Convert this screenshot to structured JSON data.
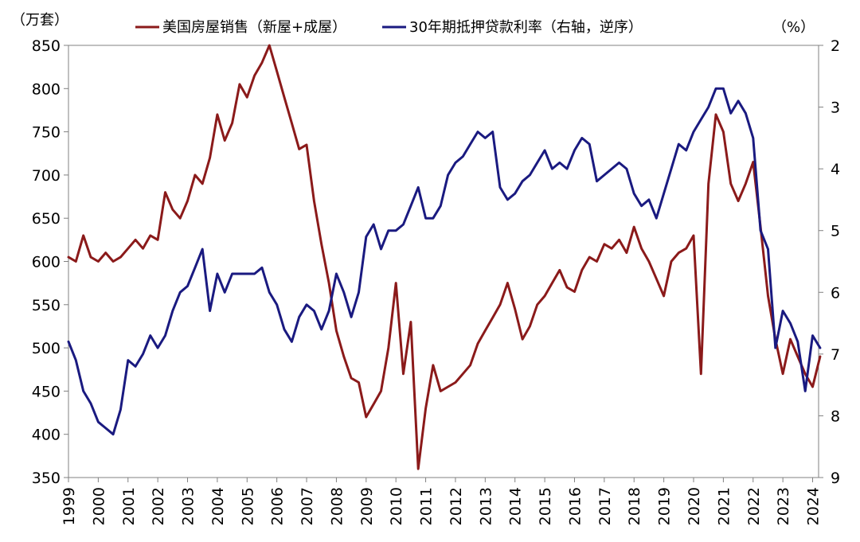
{
  "chart_data": {
    "type": "line",
    "title": "",
    "left_unit": "（万套）",
    "right_unit": "（%）",
    "legend": [
      {
        "name": "美国房屋销售（新屋+成屋）",
        "color": "#8B1A1A"
      },
      {
        "name": "30年期抵押贷款利率（右轴，逆序）",
        "color": "#1A1A80"
      }
    ],
    "x_ticks": [
      "1999",
      "2000",
      "2001",
      "2002",
      "2003",
      "2004",
      "2005",
      "2006",
      "2007",
      "2008",
      "2009",
      "2010",
      "2011",
      "2012",
      "2013",
      "2014",
      "2015",
      "2016",
      "2017",
      "2018",
      "2019",
      "2020",
      "2021",
      "2022",
      "2023",
      "2024"
    ],
    "y_left": {
      "min": 350,
      "max": 850,
      "ticks": [
        350,
        400,
        450,
        500,
        550,
        600,
        650,
        700,
        750,
        800,
        850
      ]
    },
    "y_right": {
      "min": 2,
      "max": 9,
      "inverted": true,
      "ticks": [
        2,
        3,
        4,
        5,
        6,
        7,
        8,
        9
      ]
    },
    "legend_position": "top",
    "grid": false,
    "series": [
      {
        "name": "美国房屋销售（新屋+成屋）",
        "axis": "left",
        "color": "#8B1A1A",
        "points": [
          [
            1999.0,
            605
          ],
          [
            1999.25,
            600
          ],
          [
            1999.5,
            630
          ],
          [
            1999.75,
            605
          ],
          [
            2000.0,
            600
          ],
          [
            2000.25,
            610
          ],
          [
            2000.5,
            600
          ],
          [
            2000.75,
            605
          ],
          [
            2001.0,
            615
          ],
          [
            2001.25,
            625
          ],
          [
            2001.5,
            615
          ],
          [
            2001.75,
            630
          ],
          [
            2002.0,
            625
          ],
          [
            2002.25,
            680
          ],
          [
            2002.5,
            660
          ],
          [
            2002.75,
            650
          ],
          [
            2003.0,
            670
          ],
          [
            2003.25,
            700
          ],
          [
            2003.5,
            690
          ],
          [
            2003.75,
            720
          ],
          [
            2004.0,
            770
          ],
          [
            2004.25,
            740
          ],
          [
            2004.5,
            760
          ],
          [
            2004.75,
            805
          ],
          [
            2005.0,
            790
          ],
          [
            2005.25,
            815
          ],
          [
            2005.5,
            830
          ],
          [
            2005.75,
            850
          ],
          [
            2006.0,
            820
          ],
          [
            2006.25,
            790
          ],
          [
            2006.5,
            760
          ],
          [
            2006.75,
            730
          ],
          [
            2007.0,
            735
          ],
          [
            2007.25,
            670
          ],
          [
            2007.5,
            620
          ],
          [
            2007.75,
            575
          ],
          [
            2008.0,
            520
          ],
          [
            2008.25,
            490
          ],
          [
            2008.5,
            465
          ],
          [
            2008.75,
            460
          ],
          [
            2009.0,
            420
          ],
          [
            2009.25,
            435
          ],
          [
            2009.5,
            450
          ],
          [
            2009.75,
            500
          ],
          [
            2010.0,
            575
          ],
          [
            2010.25,
            470
          ],
          [
            2010.5,
            530
          ],
          [
            2010.75,
            360
          ],
          [
            2011.0,
            430
          ],
          [
            2011.25,
            480
          ],
          [
            2011.5,
            450
          ],
          [
            2011.75,
            455
          ],
          [
            2012.0,
            460
          ],
          [
            2012.25,
            470
          ],
          [
            2012.5,
            480
          ],
          [
            2012.75,
            505
          ],
          [
            2013.0,
            520
          ],
          [
            2013.25,
            535
          ],
          [
            2013.5,
            550
          ],
          [
            2013.75,
            575
          ],
          [
            2014.0,
            545
          ],
          [
            2014.25,
            510
          ],
          [
            2014.5,
            525
          ],
          [
            2014.75,
            550
          ],
          [
            2015.0,
            560
          ],
          [
            2015.25,
            575
          ],
          [
            2015.5,
            590
          ],
          [
            2015.75,
            570
          ],
          [
            2016.0,
            565
          ],
          [
            2016.25,
            590
          ],
          [
            2016.5,
            605
          ],
          [
            2016.75,
            600
          ],
          [
            2017.0,
            620
          ],
          [
            2017.25,
            615
          ],
          [
            2017.5,
            625
          ],
          [
            2017.75,
            610
          ],
          [
            2018.0,
            640
          ],
          [
            2018.25,
            615
          ],
          [
            2018.5,
            600
          ],
          [
            2018.75,
            580
          ],
          [
            2019.0,
            560
          ],
          [
            2019.25,
            600
          ],
          [
            2019.5,
            610
          ],
          [
            2019.75,
            615
          ],
          [
            2020.0,
            630
          ],
          [
            2020.25,
            470
          ],
          [
            2020.5,
            690
          ],
          [
            2020.75,
            770
          ],
          [
            2021.0,
            750
          ],
          [
            2021.25,
            690
          ],
          [
            2021.5,
            670
          ],
          [
            2021.75,
            690
          ],
          [
            2022.0,
            715
          ],
          [
            2022.25,
            640
          ],
          [
            2022.5,
            560
          ],
          [
            2022.75,
            510
          ],
          [
            2023.0,
            470
          ],
          [
            2023.25,
            510
          ],
          [
            2023.5,
            490
          ],
          [
            2023.75,
            470
          ],
          [
            2024.0,
            455
          ],
          [
            2024.25,
            490
          ]
        ]
      },
      {
        "name": "30年期抵押贷款利率（右轴，逆序）",
        "axis": "right",
        "color": "#1A1A80",
        "points": [
          [
            1999.0,
            6.8
          ],
          [
            1999.25,
            7.1
          ],
          [
            1999.5,
            7.6
          ],
          [
            1999.75,
            7.8
          ],
          [
            2000.0,
            8.1
          ],
          [
            2000.25,
            8.2
          ],
          [
            2000.5,
            8.3
          ],
          [
            2000.75,
            7.9
          ],
          [
            2001.0,
            7.1
          ],
          [
            2001.25,
            7.2
          ],
          [
            2001.5,
            7.0
          ],
          [
            2001.75,
            6.7
          ],
          [
            2002.0,
            6.9
          ],
          [
            2002.25,
            6.7
          ],
          [
            2002.5,
            6.3
          ],
          [
            2002.75,
            6.0
          ],
          [
            2003.0,
            5.9
          ],
          [
            2003.25,
            5.6
          ],
          [
            2003.5,
            5.3
          ],
          [
            2003.75,
            6.3
          ],
          [
            2004.0,
            5.7
          ],
          [
            2004.25,
            6.0
          ],
          [
            2004.5,
            5.7
          ],
          [
            2004.75,
            5.7
          ],
          [
            2005.0,
            5.7
          ],
          [
            2005.25,
            5.7
          ],
          [
            2005.5,
            5.6
          ],
          [
            2005.75,
            6.0
          ],
          [
            2006.0,
            6.2
          ],
          [
            2006.25,
            6.6
          ],
          [
            2006.5,
            6.8
          ],
          [
            2006.75,
            6.4
          ],
          [
            2007.0,
            6.2
          ],
          [
            2007.25,
            6.3
          ],
          [
            2007.5,
            6.6
          ],
          [
            2007.75,
            6.3
          ],
          [
            2008.0,
            5.7
          ],
          [
            2008.25,
            6.0
          ],
          [
            2008.5,
            6.4
          ],
          [
            2008.75,
            6.0
          ],
          [
            2009.0,
            5.1
          ],
          [
            2009.25,
            4.9
          ],
          [
            2009.5,
            5.3
          ],
          [
            2009.75,
            5.0
          ],
          [
            2010.0,
            5.0
          ],
          [
            2010.25,
            4.9
          ],
          [
            2010.5,
            4.6
          ],
          [
            2010.75,
            4.3
          ],
          [
            2011.0,
            4.8
          ],
          [
            2011.25,
            4.8
          ],
          [
            2011.5,
            4.6
          ],
          [
            2011.75,
            4.1
          ],
          [
            2012.0,
            3.9
          ],
          [
            2012.25,
            3.8
          ],
          [
            2012.5,
            3.6
          ],
          [
            2012.75,
            3.4
          ],
          [
            2013.0,
            3.5
          ],
          [
            2013.25,
            3.4
          ],
          [
            2013.5,
            4.3
          ],
          [
            2013.75,
            4.5
          ],
          [
            2014.0,
            4.4
          ],
          [
            2014.25,
            4.2
          ],
          [
            2014.5,
            4.1
          ],
          [
            2014.75,
            3.9
          ],
          [
            2015.0,
            3.7
          ],
          [
            2015.25,
            4.0
          ],
          [
            2015.5,
            3.9
          ],
          [
            2015.75,
            4.0
          ],
          [
            2016.0,
            3.7
          ],
          [
            2016.25,
            3.5
          ],
          [
            2016.5,
            3.6
          ],
          [
            2016.75,
            4.2
          ],
          [
            2017.0,
            4.1
          ],
          [
            2017.25,
            4.0
          ],
          [
            2017.5,
            3.9
          ],
          [
            2017.75,
            4.0
          ],
          [
            2018.0,
            4.4
          ],
          [
            2018.25,
            4.6
          ],
          [
            2018.5,
            4.5
          ],
          [
            2018.75,
            4.8
          ],
          [
            2019.0,
            4.4
          ],
          [
            2019.25,
            4.0
          ],
          [
            2019.5,
            3.6
          ],
          [
            2019.75,
            3.7
          ],
          [
            2020.0,
            3.4
          ],
          [
            2020.25,
            3.2
          ],
          [
            2020.5,
            3.0
          ],
          [
            2020.75,
            2.7
          ],
          [
            2021.0,
            2.7
          ],
          [
            2021.25,
            3.1
          ],
          [
            2021.5,
            2.9
          ],
          [
            2021.75,
            3.1
          ],
          [
            2022.0,
            3.5
          ],
          [
            2022.25,
            5.0
          ],
          [
            2022.5,
            5.3
          ],
          [
            2022.75,
            6.9
          ],
          [
            2023.0,
            6.3
          ],
          [
            2023.25,
            6.5
          ],
          [
            2023.5,
            6.8
          ],
          [
            2023.75,
            7.6
          ],
          [
            2024.0,
            6.7
          ],
          [
            2024.25,
            6.9
          ]
        ]
      }
    ]
  }
}
